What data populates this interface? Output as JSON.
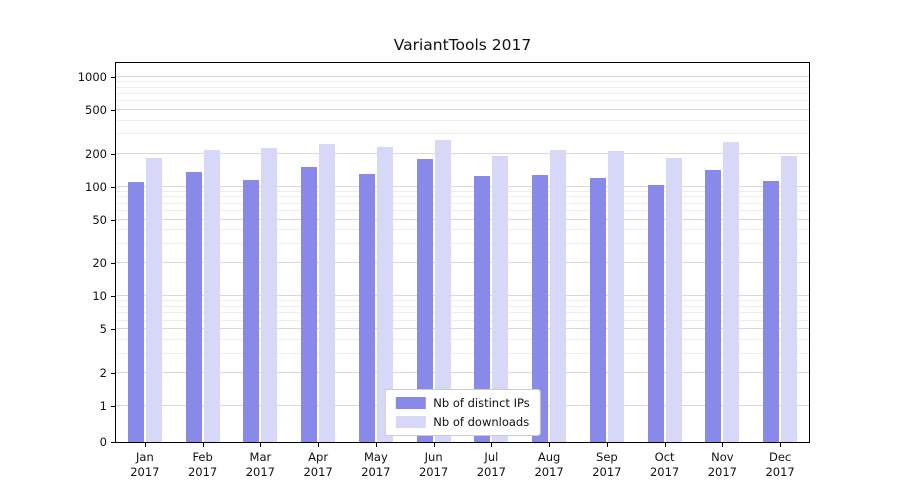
{
  "title": "VariantTools 2017",
  "chart_data": {
    "type": "bar",
    "categories": [
      "Jan",
      "Feb",
      "Mar",
      "Apr",
      "May",
      "Jun",
      "Jul",
      "Aug",
      "Sep",
      "Oct",
      "Nov",
      "Dec"
    ],
    "category_year": "2017",
    "series": [
      {
        "name": "Nb of distinct IPs",
        "color": "#8989ea",
        "values": [
          110,
          135,
          115,
          152,
          130,
          178,
          124,
          129,
          121,
          103,
          141,
          113
        ]
      },
      {
        "name": "Nb of downloads",
        "color": "#d7d7f8",
        "values": [
          184,
          214,
          226,
          243,
          232,
          268,
          191,
          214,
          210,
          184,
          253,
          190
        ]
      }
    ],
    "title": "VariantTools 2017",
    "xlabel": "",
    "ylabel": "",
    "scale": "symlog",
    "ylim": [
      0,
      1000
    ],
    "yticks": [
      0,
      1,
      2,
      5,
      10,
      20,
      50,
      100,
      200,
      500,
      1000
    ],
    "grid": true,
    "legend_position": "lower center"
  }
}
